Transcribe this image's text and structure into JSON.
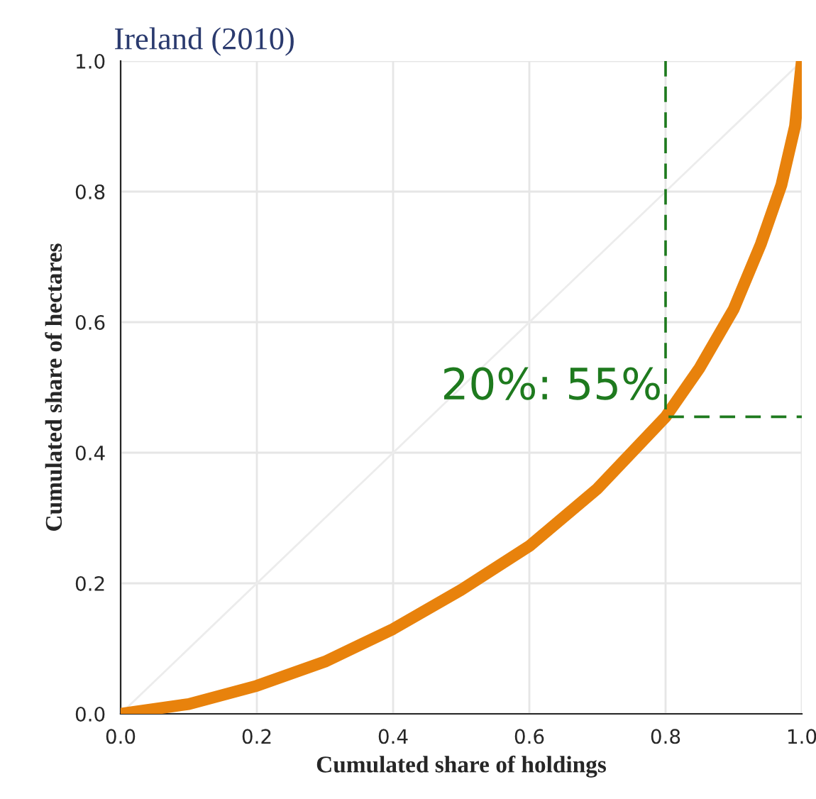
{
  "chart_data": {
    "type": "line",
    "title": "Ireland (2010)",
    "xlabel": "Cumulated share of holdings",
    "ylabel": "Cumulated share of hectares",
    "xlim": [
      0,
      1
    ],
    "ylim": [
      0,
      1
    ],
    "xticks": [
      {
        "value": 0,
        "label": "0.0"
      },
      0.2,
      0.4,
      0.6,
      0.8,
      {
        "value": 1,
        "label": "1.0"
      }
    ],
    "yticks": [
      {
        "value": 0,
        "label": "0.0"
      },
      0.2,
      0.4,
      0.6,
      0.8,
      {
        "value": 1,
        "label": "1.0"
      }
    ],
    "grid": true,
    "legend": false,
    "series": [
      {
        "color": "#ececec",
        "x": [
          0,
          1
        ],
        "values": [
          0,
          1
        ],
        "line_style": "solid"
      },
      {
        "color": "#e8820c",
        "x": [
          0,
          0.1,
          0.2,
          0.3,
          0.4,
          0.5,
          0.6,
          0.7,
          0.8,
          0.85,
          0.9,
          0.94,
          0.97,
          0.99,
          1.0
        ],
        "values": [
          0,
          0.015,
          0.043,
          0.08,
          0.13,
          0.19,
          0.257,
          0.345,
          0.455,
          0.53,
          0.62,
          0.72,
          0.81,
          0.9,
          1.0
        ],
        "line_style": "solid"
      },
      {
        "color": "#1e7a1e",
        "x": [
          0.8,
          0.8,
          1.0
        ],
        "values": [
          1.0,
          0.455,
          0.455
        ],
        "line_style": "dashed"
      }
    ],
    "annotations": [
      {
        "text": "20%: 55%",
        "x": 0.8,
        "y": 0.5
      }
    ]
  }
}
